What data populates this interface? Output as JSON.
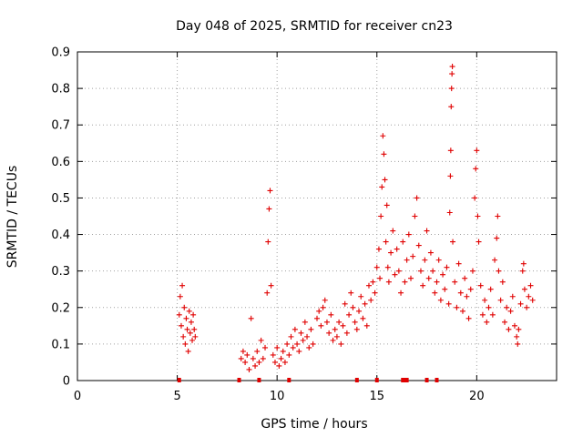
{
  "chart_data": {
    "type": "scatter",
    "title": "Day 048 of 2025, SRMTID for receiver cn23",
    "xlabel": "GPS time / hours",
    "ylabel": "SRMTID / TECUs",
    "xlim": [
      0,
      24
    ],
    "ylim": [
      0,
      0.9
    ],
    "xticks": [
      0,
      5,
      10,
      15,
      20
    ],
    "xtick_labels": [
      "0",
      "5",
      "10",
      "15",
      "20"
    ],
    "yticks": [
      0,
      0.1,
      0.2,
      0.3,
      0.4,
      0.5,
      0.6,
      0.7,
      0.8,
      0.9
    ],
    "ytick_labels": [
      "0",
      "0.1",
      "0.2",
      "0.3",
      "0.4",
      "0.5",
      "0.6",
      "0.7",
      "0.8",
      "0.9"
    ],
    "grid": true,
    "marker": "+",
    "series": [
      {
        "name": "SRMTID",
        "color": "#e00000",
        "points": [
          [
            5.1,
            0.18
          ],
          [
            5.15,
            0.23
          ],
          [
            5.2,
            0.15
          ],
          [
            5.25,
            0.26
          ],
          [
            5.3,
            0.12
          ],
          [
            5.35,
            0.2
          ],
          [
            5.4,
            0.1
          ],
          [
            5.45,
            0.17
          ],
          [
            5.5,
            0.14
          ],
          [
            5.55,
            0.08
          ],
          [
            5.6,
            0.19
          ],
          [
            5.65,
            0.13
          ],
          [
            5.7,
            0.16
          ],
          [
            5.75,
            0.11
          ],
          [
            5.8,
            0.18
          ],
          [
            5.85,
            0.14
          ],
          [
            5.9,
            0.12
          ],
          [
            8.2,
            0.06
          ],
          [
            8.3,
            0.08
          ],
          [
            8.4,
            0.05
          ],
          [
            8.5,
            0.07
          ],
          [
            8.6,
            0.03
          ],
          [
            8.7,
            0.17
          ],
          [
            8.8,
            0.06
          ],
          [
            8.9,
            0.04
          ],
          [
            9.0,
            0.08
          ],
          [
            9.1,
            0.05
          ],
          [
            9.2,
            0.11
          ],
          [
            9.3,
            0.06
          ],
          [
            9.4,
            0.09
          ],
          [
            9.5,
            0.24
          ],
          [
            9.55,
            0.38
          ],
          [
            9.6,
            0.47
          ],
          [
            9.65,
            0.52
          ],
          [
            9.7,
            0.26
          ],
          [
            9.8,
            0.07
          ],
          [
            9.9,
            0.05
          ],
          [
            10.0,
            0.09
          ],
          [
            10.1,
            0.04
          ],
          [
            10.2,
            0.06
          ],
          [
            10.3,
            0.08
          ],
          [
            10.4,
            0.05
          ],
          [
            10.5,
            0.1
          ],
          [
            10.6,
            0.07
          ],
          [
            10.7,
            0.12
          ],
          [
            10.8,
            0.09
          ],
          [
            10.9,
            0.14
          ],
          [
            11.0,
            0.1
          ],
          [
            11.1,
            0.08
          ],
          [
            11.2,
            0.13
          ],
          [
            11.3,
            0.11
          ],
          [
            11.4,
            0.16
          ],
          [
            11.5,
            0.12
          ],
          [
            11.6,
            0.09
          ],
          [
            11.7,
            0.14
          ],
          [
            11.8,
            0.1
          ],
          [
            12.0,
            0.17
          ],
          [
            12.1,
            0.19
          ],
          [
            12.2,
            0.15
          ],
          [
            12.3,
            0.2
          ],
          [
            12.4,
            0.22
          ],
          [
            12.5,
            0.16
          ],
          [
            12.6,
            0.13
          ],
          [
            12.7,
            0.18
          ],
          [
            12.8,
            0.11
          ],
          [
            12.9,
            0.14
          ],
          [
            13.0,
            0.12
          ],
          [
            13.1,
            0.16
          ],
          [
            13.2,
            0.1
          ],
          [
            13.3,
            0.15
          ],
          [
            13.4,
            0.21
          ],
          [
            13.5,
            0.13
          ],
          [
            13.6,
            0.18
          ],
          [
            13.7,
            0.24
          ],
          [
            13.8,
            0.2
          ],
          [
            13.9,
            0.16
          ],
          [
            14.0,
            0.14
          ],
          [
            14.1,
            0.19
          ],
          [
            14.2,
            0.23
          ],
          [
            14.3,
            0.17
          ],
          [
            14.4,
            0.21
          ],
          [
            14.5,
            0.15
          ],
          [
            14.6,
            0.26
          ],
          [
            14.7,
            0.22
          ],
          [
            14.8,
            0.27
          ],
          [
            14.9,
            0.24
          ],
          [
            15.0,
            0.31
          ],
          [
            15.1,
            0.36
          ],
          [
            15.15,
            0.28
          ],
          [
            15.2,
            0.45
          ],
          [
            15.25,
            0.53
          ],
          [
            15.3,
            0.67
          ],
          [
            15.35,
            0.62
          ],
          [
            15.4,
            0.55
          ],
          [
            15.45,
            0.38
          ],
          [
            15.5,
            0.48
          ],
          [
            15.55,
            0.31
          ],
          [
            15.6,
            0.27
          ],
          [
            15.7,
            0.35
          ],
          [
            15.8,
            0.41
          ],
          [
            15.9,
            0.29
          ],
          [
            16.0,
            0.36
          ],
          [
            16.1,
            0.3
          ],
          [
            16.2,
            0.24
          ],
          [
            16.3,
            0.38
          ],
          [
            16.4,
            0.27
          ],
          [
            16.5,
            0.33
          ],
          [
            16.6,
            0.4
          ],
          [
            16.7,
            0.28
          ],
          [
            16.8,
            0.34
          ],
          [
            16.9,
            0.45
          ],
          [
            17.0,
            0.5
          ],
          [
            17.1,
            0.37
          ],
          [
            17.2,
            0.3
          ],
          [
            17.3,
            0.26
          ],
          [
            17.4,
            0.33
          ],
          [
            17.5,
            0.41
          ],
          [
            17.6,
            0.28
          ],
          [
            17.7,
            0.35
          ],
          [
            17.8,
            0.3
          ],
          [
            17.9,
            0.24
          ],
          [
            18.0,
            0.27
          ],
          [
            18.1,
            0.33
          ],
          [
            18.2,
            0.22
          ],
          [
            18.3,
            0.29
          ],
          [
            18.4,
            0.25
          ],
          [
            18.5,
            0.31
          ],
          [
            18.6,
            0.21
          ],
          [
            18.65,
            0.46
          ],
          [
            18.68,
            0.56
          ],
          [
            18.7,
            0.63
          ],
          [
            18.72,
            0.75
          ],
          [
            18.74,
            0.8
          ],
          [
            18.76,
            0.84
          ],
          [
            18.78,
            0.86
          ],
          [
            18.8,
            0.38
          ],
          [
            18.9,
            0.27
          ],
          [
            19.0,
            0.2
          ],
          [
            19.1,
            0.32
          ],
          [
            19.2,
            0.24
          ],
          [
            19.3,
            0.19
          ],
          [
            19.4,
            0.28
          ],
          [
            19.5,
            0.23
          ],
          [
            19.6,
            0.17
          ],
          [
            19.7,
            0.25
          ],
          [
            19.8,
            0.3
          ],
          [
            19.9,
            0.5
          ],
          [
            19.95,
            0.58
          ],
          [
            20.0,
            0.63
          ],
          [
            20.05,
            0.45
          ],
          [
            20.1,
            0.38
          ],
          [
            20.2,
            0.26
          ],
          [
            20.3,
            0.18
          ],
          [
            20.4,
            0.22
          ],
          [
            20.5,
            0.16
          ],
          [
            20.6,
            0.2
          ],
          [
            20.7,
            0.25
          ],
          [
            20.8,
            0.18
          ],
          [
            20.9,
            0.33
          ],
          [
            21.0,
            0.39
          ],
          [
            21.05,
            0.45
          ],
          [
            21.1,
            0.3
          ],
          [
            21.2,
            0.22
          ],
          [
            21.3,
            0.27
          ],
          [
            21.4,
            0.16
          ],
          [
            21.5,
            0.2
          ],
          [
            21.6,
            0.14
          ],
          [
            21.7,
            0.19
          ],
          [
            21.8,
            0.23
          ],
          [
            21.9,
            0.15
          ],
          [
            22.0,
            0.12
          ],
          [
            22.05,
            0.1
          ],
          [
            22.1,
            0.14
          ],
          [
            22.2,
            0.21
          ],
          [
            22.3,
            0.3
          ],
          [
            22.35,
            0.32
          ],
          [
            22.4,
            0.25
          ],
          [
            22.5,
            0.2
          ],
          [
            22.6,
            0.23
          ],
          [
            22.7,
            0.26
          ],
          [
            22.8,
            0.22
          ]
        ]
      }
    ],
    "zero_points": [
      5.1,
      8.1,
      9.1,
      10.6,
      14.0,
      15.0,
      16.3,
      16.4,
      16.5,
      17.5,
      18.0
    ]
  }
}
